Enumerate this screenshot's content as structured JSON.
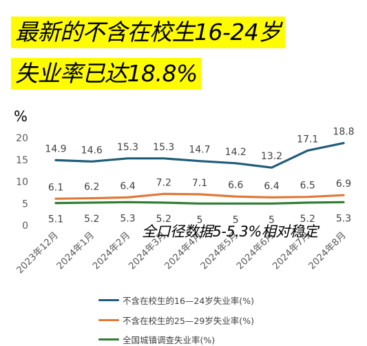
{
  "headline": {
    "line1": "最新的不含在校生16-24岁",
    "line2": "失业率已达18.8%",
    "highlight_color": "#fffb00"
  },
  "annotation": "全口径数据5-5.3%相对稳定",
  "chart_data": {
    "type": "line",
    "unit_label": "%",
    "categories": [
      "2023年12月",
      "2024年1月",
      "2024年2月",
      "2024年3月",
      "2024年4月",
      "2024年5月",
      "2024年6月",
      "2024年7月",
      "2024年8月"
    ],
    "ylim": [
      0,
      20
    ],
    "yticks": [
      0,
      5,
      10,
      15,
      20
    ],
    "grid": false,
    "legend_position": "bottom",
    "series": [
      {
        "name": "不含在校生的16—24岁失业率(%)",
        "color": "#1f5c7a",
        "values": [
          14.9,
          14.6,
          15.3,
          15.3,
          14.7,
          14.2,
          13.2,
          17.1,
          18.8
        ]
      },
      {
        "name": "不含在校生的25—29岁失业率(%)",
        "color": "#e07838",
        "values": [
          6.1,
          6.2,
          6.4,
          7.2,
          7.1,
          6.6,
          6.4,
          6.5,
          6.9
        ]
      },
      {
        "name": "全国城镇调查失业率(%)",
        "color": "#2e7d32",
        "values": [
          5.1,
          5.2,
          5.3,
          5.2,
          5,
          5,
          5,
          5.2,
          5.3
        ]
      }
    ]
  }
}
